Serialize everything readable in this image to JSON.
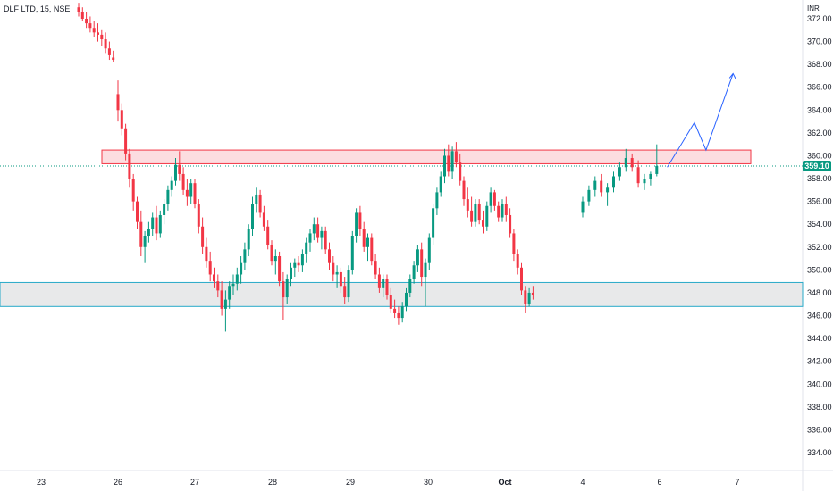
{
  "header": {
    "symbol_title": "DLF LTD, 15, NSE",
    "currency": "INR"
  },
  "last_price_label": "359.10",
  "colors": {
    "up": "#089981",
    "down": "#f23645",
    "resistance_fill": "#fbd5d8",
    "resistance_stroke": "#f23645",
    "support_fill": "#e6e7e8",
    "support_stroke": "#26a9c8",
    "projection": "#2962ff",
    "price_line": "#089981"
  },
  "chart_data": {
    "type": "candlestick",
    "ylim": [
      332.8,
      373.0
    ],
    "y_ticks": [
      "372.00",
      "370.00",
      "368.00",
      "366.00",
      "364.00",
      "362.00",
      "360.00",
      "358.00",
      "356.00",
      "354.00",
      "352.00",
      "350.00",
      "348.00",
      "346.00",
      "344.00",
      "342.00",
      "340.00",
      "338.00",
      "336.00",
      "334.00"
    ],
    "x_ticks": [
      "23",
      "26",
      "27",
      "28",
      "29",
      "30",
      "Oct",
      "4",
      "6",
      "7"
    ],
    "last_price": 359.1,
    "zones": [
      {
        "name": "resistance",
        "low": 359.3,
        "high": 360.5
      },
      {
        "name": "support",
        "low": 346.8,
        "high": 348.9
      }
    ],
    "projection_path": [
      {
        "x_day": 6.1,
        "price": 359.0
      },
      {
        "x_day": 6.45,
        "price": 362.9
      },
      {
        "x_day": 6.6,
        "price": 360.5
      },
      {
        "x_day": 6.95,
        "price": 367.2
      }
    ],
    "candles_note": "OHLC",
    "candles": [
      [
        373.0,
        373.4,
        372.2,
        372.6
      ],
      [
        372.6,
        373.0,
        371.8,
        372.0
      ],
      [
        372.0,
        372.6,
        371.2,
        371.6
      ],
      [
        371.6,
        372.2,
        370.8,
        371.2
      ],
      [
        371.2,
        371.8,
        370.4,
        370.8
      ],
      [
        370.8,
        371.6,
        370.0,
        370.6
      ],
      [
        370.6,
        371.0,
        369.6,
        370.2
      ],
      [
        370.2,
        370.8,
        369.0,
        369.4
      ],
      [
        369.4,
        370.0,
        368.4,
        368.8
      ],
      [
        368.6,
        369.2,
        368.2,
        368.4
      ],
      [
        365.4,
        366.6,
        363.0,
        364.0
      ],
      [
        364.0,
        364.6,
        361.8,
        362.4
      ],
      [
        362.4,
        362.8,
        359.6,
        360.2
      ],
      [
        360.2,
        360.6,
        357.2,
        358.0
      ],
      [
        358.0,
        358.4,
        355.2,
        356.0
      ],
      [
        356.0,
        356.4,
        353.6,
        354.2
      ],
      [
        354.2,
        355.2,
        351.2,
        352.0
      ],
      [
        352.0,
        353.4,
        350.6,
        353.0
      ],
      [
        353.0,
        354.2,
        352.4,
        353.6
      ],
      [
        353.6,
        355.0,
        353.0,
        354.6
      ],
      [
        354.6,
        355.6,
        352.6,
        353.2
      ],
      [
        353.2,
        355.2,
        352.8,
        354.8
      ],
      [
        354.8,
        356.2,
        354.0,
        355.8
      ],
      [
        355.8,
        357.4,
        355.2,
        357.0
      ],
      [
        357.0,
        358.2,
        356.4,
        357.8
      ],
      [
        357.8,
        359.8,
        357.4,
        359.2
      ],
      [
        359.2,
        360.4,
        357.8,
        358.4
      ],
      [
        358.4,
        359.0,
        356.6,
        357.0
      ],
      [
        357.0,
        358.0,
        355.6,
        356.4
      ],
      [
        356.4,
        358.0,
        355.8,
        357.6
      ],
      [
        357.6,
        358.0,
        355.4,
        355.8
      ],
      [
        355.8,
        356.2,
        353.2,
        353.8
      ],
      [
        353.8,
        354.6,
        351.4,
        352.0
      ],
      [
        352.0,
        352.8,
        350.2,
        350.8
      ],
      [
        350.8,
        351.6,
        349.0,
        349.6
      ],
      [
        349.6,
        350.2,
        348.4,
        349.0
      ],
      [
        349.0,
        349.6,
        347.6,
        348.2
      ],
      [
        348.2,
        349.0,
        346.0,
        346.6
      ],
      [
        346.6,
        348.2,
        344.6,
        347.4
      ],
      [
        347.4,
        349.0,
        346.6,
        348.6
      ],
      [
        348.6,
        349.6,
        347.8,
        348.8
      ],
      [
        348.8,
        350.2,
        348.2,
        349.6
      ],
      [
        349.6,
        351.2,
        348.8,
        350.6
      ],
      [
        350.6,
        352.4,
        350.0,
        351.8
      ],
      [
        351.8,
        354.0,
        351.2,
        353.6
      ],
      [
        353.6,
        356.4,
        353.0,
        355.8
      ],
      [
        355.8,
        357.2,
        355.0,
        356.6
      ],
      [
        356.6,
        357.0,
        354.6,
        355.0
      ],
      [
        355.0,
        355.6,
        353.4,
        353.8
      ],
      [
        353.8,
        354.4,
        351.8,
        352.2
      ],
      [
        352.2,
        352.6,
        350.4,
        350.8
      ],
      [
        350.8,
        351.8,
        349.6,
        351.2
      ],
      [
        351.2,
        351.6,
        348.6,
        349.0
      ],
      [
        349.0,
        349.8,
        345.6,
        347.6
      ],
      [
        347.6,
        349.6,
        347.0,
        349.2
      ],
      [
        349.2,
        350.6,
        348.6,
        350.2
      ],
      [
        350.2,
        351.0,
        349.4,
        350.6
      ],
      [
        350.6,
        351.2,
        349.8,
        350.4
      ],
      [
        350.4,
        351.8,
        349.8,
        351.4
      ],
      [
        351.4,
        352.8,
        350.6,
        352.4
      ],
      [
        352.4,
        353.6,
        351.6,
        353.2
      ],
      [
        353.2,
        354.6,
        352.6,
        354.0
      ],
      [
        354.0,
        354.6,
        352.4,
        352.8
      ],
      [
        352.8,
        353.8,
        351.8,
        353.4
      ],
      [
        353.4,
        353.8,
        351.4,
        351.8
      ],
      [
        351.8,
        352.4,
        350.0,
        350.6
      ],
      [
        350.6,
        351.2,
        349.0,
        349.6
      ],
      [
        349.6,
        350.4,
        348.4,
        349.8
      ],
      [
        349.8,
        350.2,
        348.0,
        348.6
      ],
      [
        348.6,
        349.4,
        347.0,
        347.6
      ],
      [
        347.6,
        350.4,
        347.2,
        350.0
      ],
      [
        350.0,
        353.4,
        349.6,
        353.0
      ],
      [
        353.0,
        355.4,
        352.4,
        355.0
      ],
      [
        355.0,
        355.6,
        353.0,
        353.6
      ],
      [
        353.6,
        354.2,
        351.6,
        352.0
      ],
      [
        352.0,
        353.2,
        350.8,
        352.8
      ],
      [
        352.8,
        353.2,
        350.4,
        350.8
      ],
      [
        350.8,
        351.4,
        349.2,
        349.6
      ],
      [
        349.6,
        350.2,
        348.0,
        348.4
      ],
      [
        348.4,
        349.6,
        347.6,
        349.2
      ],
      [
        349.2,
        349.6,
        347.4,
        347.8
      ],
      [
        347.8,
        348.4,
        346.2,
        346.6
      ],
      [
        346.6,
        347.4,
        345.8,
        346.2
      ],
      [
        346.2,
        346.8,
        345.2,
        345.8
      ],
      [
        345.8,
        347.2,
        345.4,
        346.8
      ],
      [
        346.8,
        348.4,
        346.4,
        348.0
      ],
      [
        348.0,
        349.6,
        347.6,
        349.2
      ],
      [
        349.2,
        350.8,
        348.8,
        350.4
      ],
      [
        350.4,
        352.2,
        349.8,
        351.8
      ],
      [
        351.8,
        352.4,
        348.6,
        349.4
      ],
      [
        349.4,
        351.0,
        346.8,
        350.6
      ],
      [
        350.6,
        353.2,
        350.0,
        352.8
      ],
      [
        352.8,
        355.8,
        352.2,
        355.4
      ],
      [
        355.4,
        357.2,
        354.8,
        356.8
      ],
      [
        356.8,
        358.6,
        356.4,
        358.2
      ],
      [
        358.2,
        360.6,
        357.6,
        360.0
      ],
      [
        360.0,
        361.0,
        358.2,
        358.6
      ],
      [
        358.6,
        360.8,
        358.0,
        360.4
      ],
      [
        360.4,
        361.2,
        359.0,
        359.4
      ],
      [
        359.4,
        360.2,
        357.4,
        357.8
      ],
      [
        357.8,
        358.2,
        355.6,
        356.2
      ],
      [
        356.2,
        357.2,
        354.6,
        355.2
      ],
      [
        355.2,
        356.4,
        353.8,
        354.2
      ],
      [
        354.2,
        356.2,
        353.8,
        355.8
      ],
      [
        355.8,
        356.2,
        354.0,
        354.4
      ],
      [
        354.4,
        355.2,
        353.2,
        353.8
      ],
      [
        353.8,
        356.0,
        353.4,
        355.6
      ],
      [
        355.6,
        357.2,
        355.0,
        356.8
      ],
      [
        356.8,
        357.0,
        355.2,
        355.6
      ],
      [
        355.6,
        356.0,
        354.2,
        354.6
      ],
      [
        354.6,
        356.2,
        354.2,
        355.8
      ],
      [
        355.8,
        356.4,
        354.2,
        354.8
      ],
      [
        354.8,
        355.4,
        352.8,
        353.2
      ],
      [
        353.2,
        353.6,
        350.8,
        351.4
      ],
      [
        351.4,
        351.8,
        349.6,
        350.2
      ],
      [
        350.2,
        350.6,
        347.8,
        348.2
      ],
      [
        348.2,
        348.6,
        346.2,
        347.0
      ],
      [
        347.0,
        348.4,
        346.8,
        348.0
      ],
      [
        348.0,
        348.6,
        347.4,
        347.8
      ],
      [
        355.0,
        356.4,
        354.6,
        356.0
      ],
      [
        356.0,
        357.4,
        355.6,
        357.0
      ],
      [
        357.0,
        358.2,
        356.4,
        357.8
      ],
      [
        357.8,
        358.4,
        356.4,
        356.8
      ],
      [
        356.8,
        357.6,
        355.6,
        357.2
      ],
      [
        357.2,
        358.6,
        356.8,
        358.2
      ],
      [
        358.2,
        359.4,
        357.8,
        359.0
      ],
      [
        359.0,
        360.6,
        358.6,
        359.8
      ],
      [
        359.8,
        360.2,
        358.6,
        359.0
      ],
      [
        359.0,
        359.6,
        357.2,
        357.6
      ],
      [
        357.6,
        358.4,
        357.0,
        358.0
      ],
      [
        358.0,
        358.6,
        357.4,
        358.4
      ],
      [
        358.4,
        361.0,
        358.2,
        359.1
      ]
    ]
  }
}
